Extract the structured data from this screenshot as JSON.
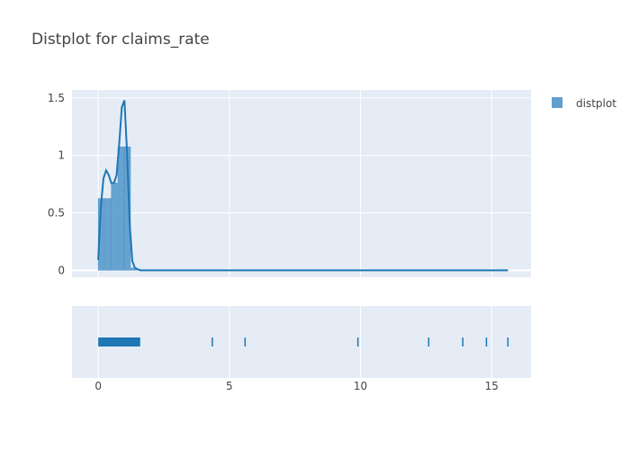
{
  "chart_data": {
    "type": "histogram",
    "title": "Distplot for claims_rate",
    "legend": {
      "position": "top-right",
      "entries": [
        "distplot"
      ]
    },
    "colors": {
      "series": "#1f77b4",
      "bar_fill": "#5f9fcf",
      "plot_bg": "#e5ecf6",
      "grid": "#ffffff"
    },
    "histogram": {
      "bins": [
        {
          "x0": 0.0,
          "x1": 0.25,
          "y": 0.625
        },
        {
          "x0": 0.25,
          "x1": 0.5,
          "y": 0.625
        },
        {
          "x0": 0.5,
          "x1": 0.75,
          "y": 0.76
        },
        {
          "x0": 0.75,
          "x1": 1.0,
          "y": 1.075
        },
        {
          "x0": 1.0,
          "x1": 1.25,
          "y": 1.075
        },
        {
          "x0": 1.25,
          "x1": 1.5,
          "y": 0.02
        }
      ]
    },
    "kde": {
      "x": [
        0.0,
        0.1,
        0.2,
        0.3,
        0.4,
        0.5,
        0.6,
        0.7,
        0.8,
        0.9,
        1.0,
        1.1,
        1.2,
        1.3,
        1.4,
        1.6,
        15.62
      ],
      "y": [
        0.09,
        0.55,
        0.8,
        0.87,
        0.83,
        0.76,
        0.76,
        0.83,
        1.1,
        1.42,
        1.48,
        1.02,
        0.4,
        0.08,
        0.02,
        0.0,
        0.0
      ]
    },
    "rug": {
      "positions": [
        0.0,
        1.45,
        4.35,
        5.6,
        9.9,
        12.6,
        13.9,
        14.8,
        15.62
      ]
    },
    "axes": {
      "x": {
        "range": [
          -1.0,
          16.5
        ],
        "ticks": [
          "0",
          "5",
          "10",
          "15"
        ],
        "tick_values": [
          0,
          5,
          10,
          15
        ]
      },
      "y": {
        "range": [
          -0.06,
          1.57
        ],
        "ticks": [
          "0",
          "0.5",
          "1",
          "1.5"
        ],
        "tick_values": [
          0,
          0.5,
          1,
          1.5
        ]
      }
    },
    "grid": true
  }
}
